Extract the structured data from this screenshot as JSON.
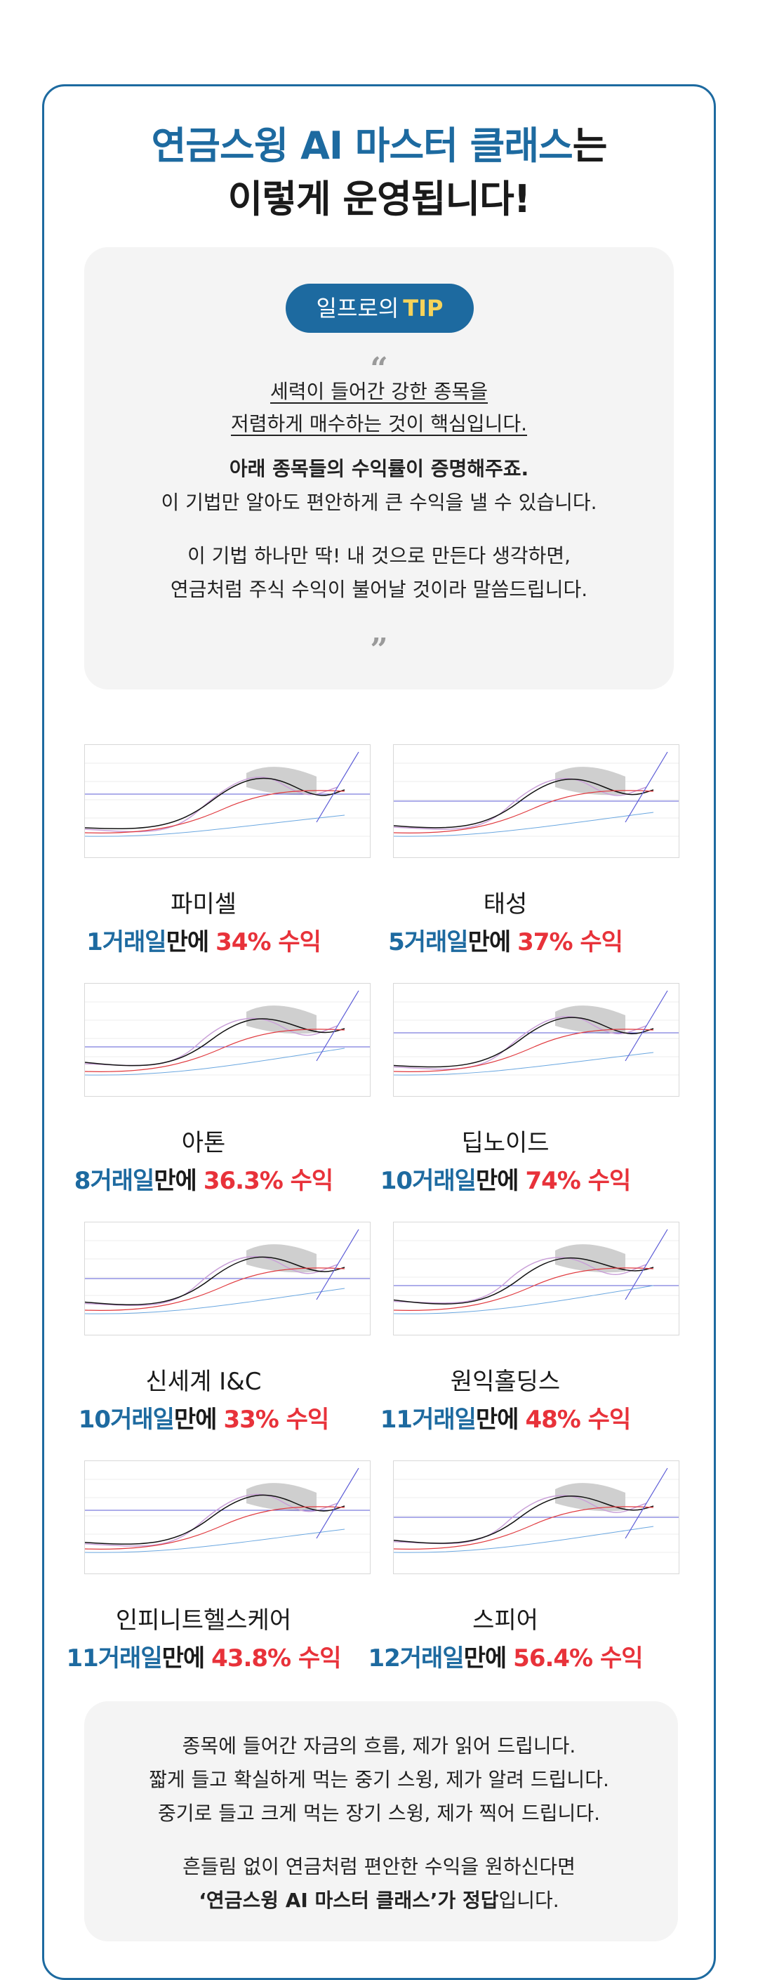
{
  "headline": {
    "line1_blue": "연금스윙 AI 마스터 클래스",
    "line1_dark": "는",
    "line2": "이렇게 운영됩니다!"
  },
  "tip": {
    "pill_prefix": "일프로의",
    "pill_tip": "TIP",
    "open_quote": "“",
    "close_quote": "”",
    "underline_1": "세력이 들어간 강한 종목을",
    "underline_2": "저렴하게 매수하는 것이 핵심입니다.",
    "bold_line": "아래 종목들의 수익률이 증명해주죠.",
    "line_3": "이 기법만 알아도 편안하게 큰 수익을 낼 수 있습니다.",
    "line_4": "이 기법 하나만 딱! 내 것으로 만든다 생각하면,",
    "line_5": "연금처럼 주식 수익이 불어날 것이라 말씀드립니다."
  },
  "stocks": [
    {
      "name": "파미셀",
      "days": "1거래일",
      "man": "만에",
      "pct": "34% 수익"
    },
    {
      "name": "태성",
      "days": "5거래일",
      "man": "만에",
      "pct": "37% 수익"
    },
    {
      "name": "아톤",
      "days": "8거래일",
      "man": "만에",
      "pct": "36.3% 수익"
    },
    {
      "name": "딥노이드",
      "days": "10거래일",
      "man": "만에",
      "pct": "74% 수익"
    },
    {
      "name": "신세계 I&C",
      "days": "10거래일",
      "man": "만에",
      "pct": "33% 수익"
    },
    {
      "name": "원익홀딩스",
      "days": "11거래일",
      "man": "만에",
      "pct": "48% 수익"
    },
    {
      "name": "인피니트헬스케어",
      "days": "11거래일",
      "man": "만에",
      "pct": "43.8% 수익"
    },
    {
      "name": "스피어",
      "days": "12거래일",
      "man": "만에",
      "pct": "56.4% 수익"
    }
  ],
  "bottom": {
    "line_1": "종목에 들어간 자금의 흐름, 제가 읽어 드립니다.",
    "line_2": "짧게 들고 확실하게 먹는 중기 스윙, 제가 알려 드립니다.",
    "line_3": "중기로 들고 크게 먹는 장기 스윙, 제가 찍어 드립니다.",
    "line_4": "흔들림 없이 연금처럼 편안한 수익을 원하신다면",
    "line_5_bold": "‘연금스윙 AI 마스터 클래스’가 정답",
    "line_5_tail": "입니다."
  },
  "colors": {
    "brand_blue": "#1d6aa0",
    "profit_red": "#e8323a",
    "tip_yellow": "#f6d35a",
    "box_gray": "#f4f4f4"
  }
}
